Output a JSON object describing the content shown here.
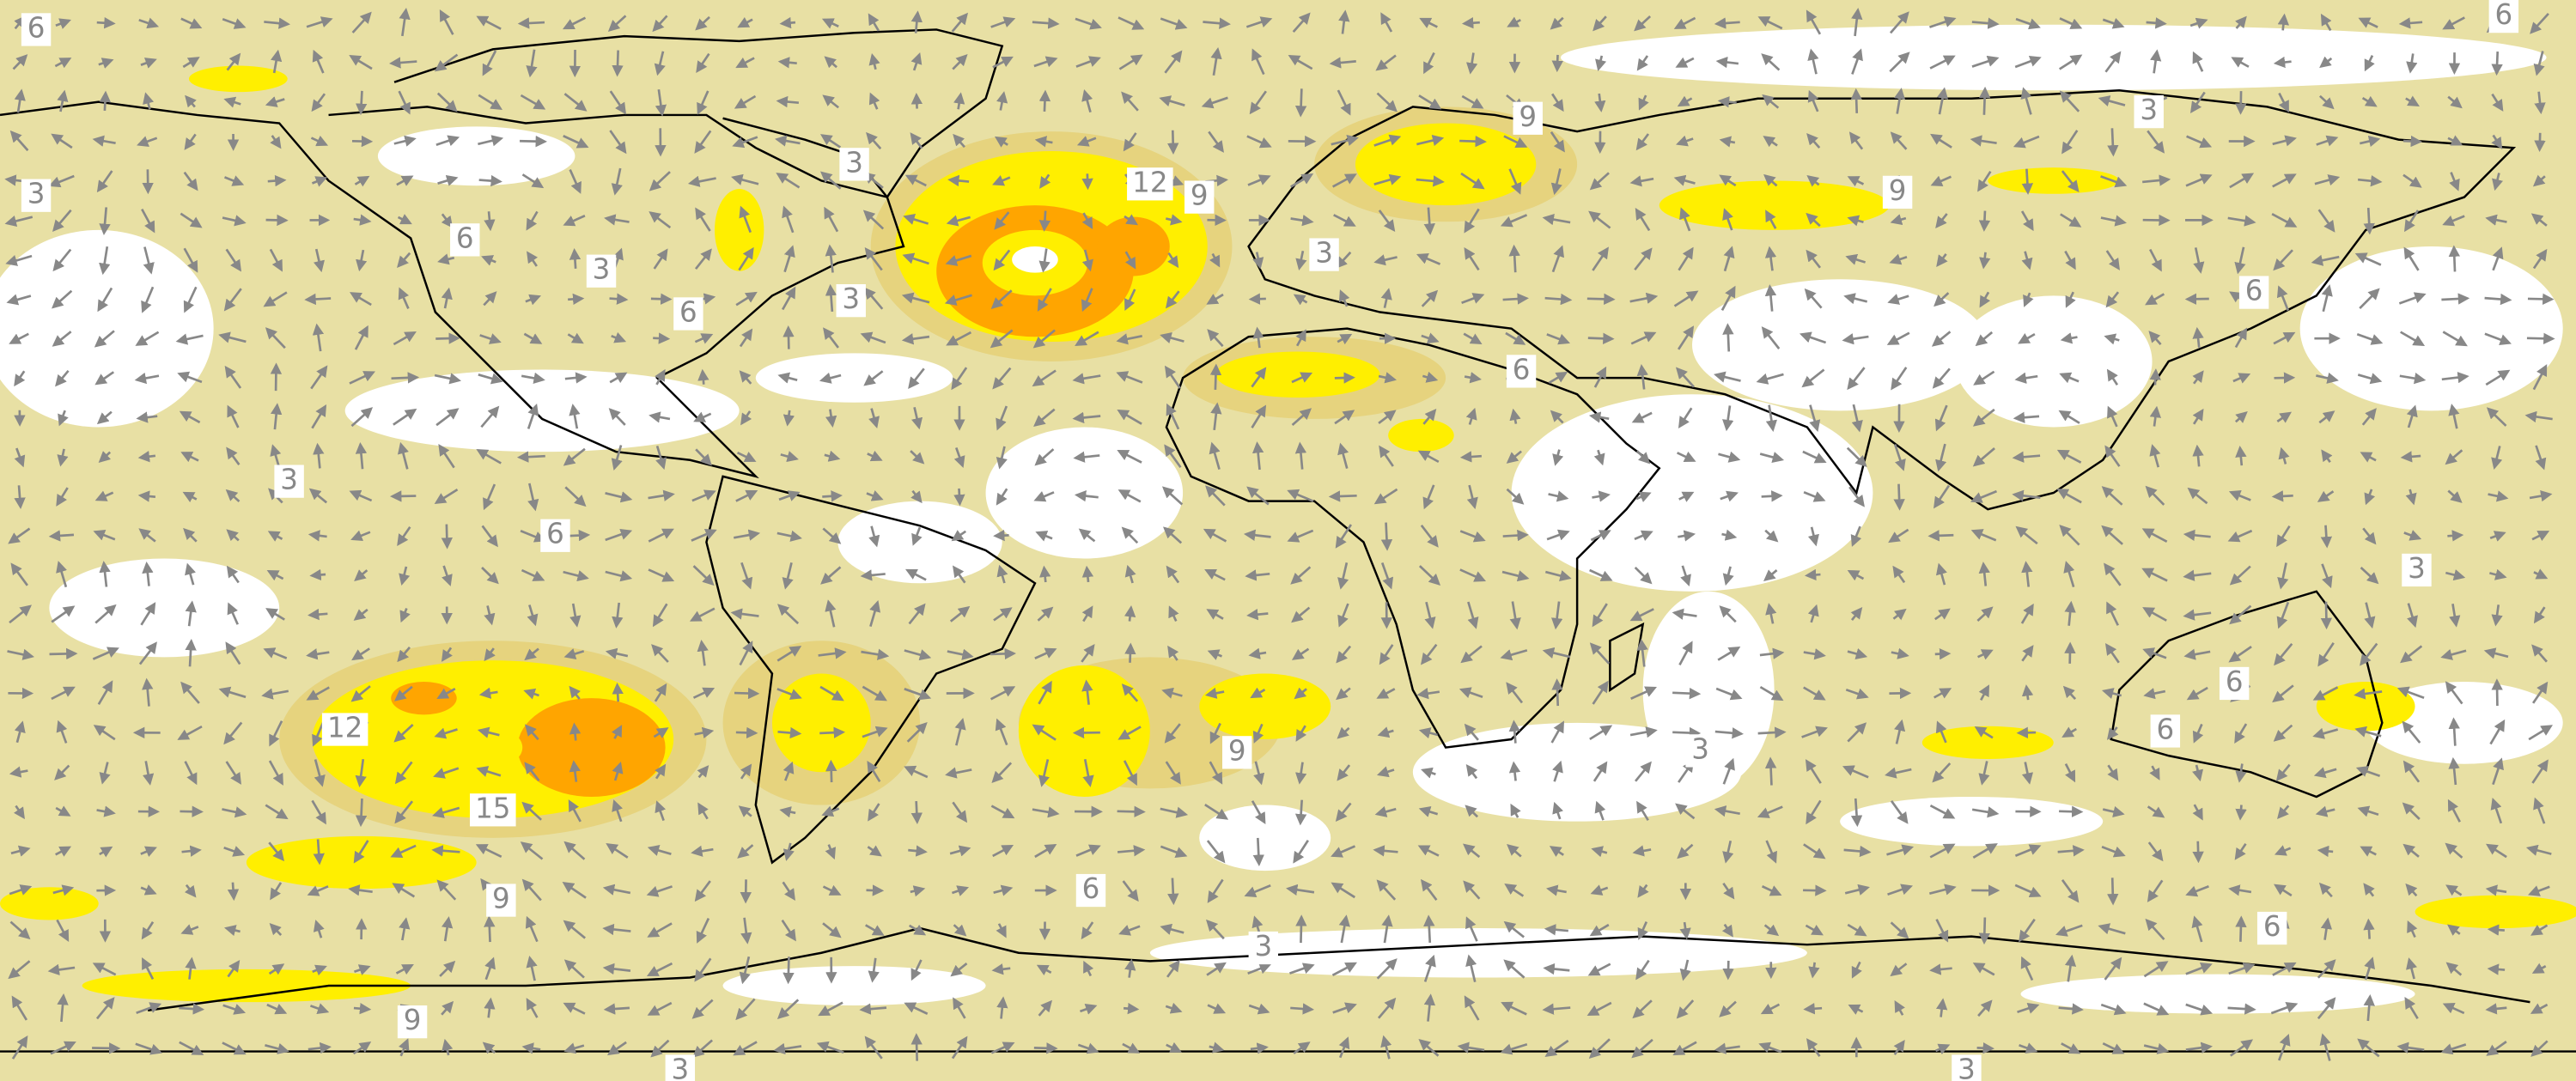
{
  "labels": [
    "6",
    "6",
    "3",
    "3",
    "12",
    "9",
    "9",
    "3",
    "9",
    "6",
    "3",
    "6",
    "3",
    "3",
    "6",
    "6",
    "3",
    "6",
    "3",
    "12",
    "15",
    "9",
    "3",
    "6",
    "6",
    "9",
    "6",
    "3",
    "6",
    "9",
    "3",
    "3"
  ]
}
